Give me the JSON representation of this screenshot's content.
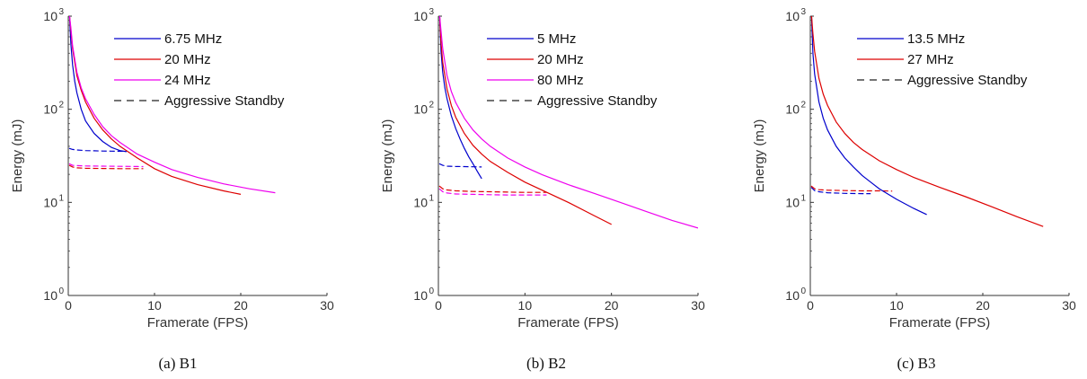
{
  "chart_data": [
    {
      "type": "line",
      "caption": "(a) B1",
      "xlabel": "Framerate (FPS)",
      "ylabel": "Energy (mJ)",
      "xlim": [
        0,
        30
      ],
      "ylim": [
        1,
        1000
      ],
      "yscale": "log",
      "xticks": [
        "0",
        "10",
        "20",
        "30"
      ],
      "yticks": [
        {
          "base": "10",
          "exp": "0"
        },
        {
          "base": "10",
          "exp": "1"
        },
        {
          "base": "10",
          "exp": "2"
        },
        {
          "base": "10",
          "exp": "3"
        }
      ],
      "grid": false,
      "legend_position": "top-right",
      "standby_label": "Aggressive Standby",
      "series": [
        {
          "name": "6.75 MHz",
          "color": "#0000cc",
          "x": [
            0.15,
            0.3,
            0.5,
            0.75,
            1,
            1.5,
            2,
            3,
            4,
            5,
            6,
            6.75
          ],
          "y": [
            1000,
            500,
            300,
            200,
            150,
            100,
            75,
            55,
            45,
            39,
            36,
            35
          ]
        },
        {
          "name": "20 MHz",
          "color": "#dd0000",
          "x": [
            0.15,
            0.3,
            0.5,
            1,
            1.5,
            2,
            3,
            4,
            5,
            6,
            8,
            10,
            12,
            15,
            18,
            20
          ],
          "y": [
            1000,
            700,
            450,
            230,
            160,
            120,
            80,
            60,
            48,
            40,
            30,
            23,
            19,
            15.5,
            13.3,
            12.2
          ]
        },
        {
          "name": "24 MHz",
          "color": "#ee00ee",
          "x": [
            0.15,
            0.3,
            0.5,
            1,
            1.5,
            2,
            3,
            4,
            5,
            6,
            8,
            10,
            12,
            15,
            18,
            21,
            24
          ],
          "y": [
            1000,
            750,
            480,
            250,
            170,
            130,
            88,
            65,
            52,
            44,
            33,
            27,
            22.5,
            18.5,
            15.8,
            14,
            12.7
          ]
        }
      ],
      "standby": [
        {
          "color": "#0000cc",
          "x": [
            0.1,
            0.5,
            1,
            2,
            3,
            4,
            5,
            6.75
          ],
          "y": [
            38,
            37,
            36.5,
            36,
            35.8,
            35.6,
            35.5,
            35.3
          ]
        },
        {
          "color": "#dd0000",
          "x": [
            0.1,
            0.5,
            1,
            2,
            4,
            6,
            8,
            8.7
          ],
          "y": [
            25,
            24,
            23.5,
            23.2,
            23.1,
            23,
            23,
            23
          ]
        },
        {
          "color": "#ee00ee",
          "x": [
            0.1,
            0.5,
            1,
            2,
            4,
            6,
            8,
            8.7
          ],
          "y": [
            26,
            25,
            24.8,
            24.6,
            24.5,
            24.4,
            24.3,
            24.2
          ]
        }
      ]
    },
    {
      "type": "line",
      "caption": "(b) B2",
      "xlabel": "Framerate (FPS)",
      "ylabel": "Energy (mJ)",
      "xlim": [
        0,
        30
      ],
      "ylim": [
        1,
        1000
      ],
      "yscale": "log",
      "xticks": [
        "0",
        "10",
        "20",
        "30"
      ],
      "yticks": [
        {
          "base": "10",
          "exp": "0"
        },
        {
          "base": "10",
          "exp": "1"
        },
        {
          "base": "10",
          "exp": "2"
        },
        {
          "base": "10",
          "exp": "3"
        }
      ],
      "grid": false,
      "legend_position": "top-right",
      "standby_label": "Aggressive Standby",
      "series": [
        {
          "name": "5 MHz",
          "color": "#0000cc",
          "x": [
            0.15,
            0.3,
            0.5,
            0.75,
            1,
            1.5,
            2,
            2.5,
            3,
            3.5,
            4,
            4.5,
            5
          ],
          "y": [
            1000,
            420,
            250,
            170,
            130,
            85,
            62,
            48,
            38,
            31,
            26,
            21.5,
            18
          ]
        },
        {
          "name": "20 MHz",
          "color": "#dd0000",
          "x": [
            0.15,
            0.3,
            0.5,
            1,
            1.5,
            2,
            3,
            4,
            5,
            6,
            8,
            10,
            12,
            15,
            18,
            20
          ],
          "y": [
            1000,
            520,
            320,
            165,
            110,
            82,
            55,
            41,
            33,
            27.5,
            21,
            16.5,
            13.5,
            10,
            7.2,
            5.8
          ]
        },
        {
          "name": "80 MHz",
          "color": "#ee00ee",
          "x": [
            0.15,
            0.3,
            0.5,
            1,
            1.5,
            2,
            3,
            4,
            5,
            6,
            8,
            10,
            12,
            15,
            18,
            21,
            24,
            27,
            30
          ],
          "y": [
            1000,
            700,
            450,
            230,
            155,
            118,
            80,
            60,
            48,
            40,
            30,
            24,
            19.8,
            15.5,
            12.5,
            10,
            8,
            6.4,
            5.3
          ]
        }
      ],
      "standby": [
        {
          "color": "#0000cc",
          "x": [
            0.1,
            0.5,
            1,
            2,
            3,
            4,
            5
          ],
          "y": [
            26,
            25,
            24.5,
            24.3,
            24.2,
            24.1,
            24
          ]
        },
        {
          "color": "#dd0000",
          "x": [
            0.1,
            0.5,
            1,
            2,
            4,
            6,
            8,
            10,
            12.5
          ],
          "y": [
            15,
            14,
            13.6,
            13.3,
            13.1,
            13,
            12.9,
            12.8,
            12.8
          ]
        },
        {
          "color": "#ee00ee",
          "x": [
            0.1,
            0.5,
            1,
            2,
            4,
            6,
            8,
            10,
            12.5
          ],
          "y": [
            14,
            13,
            12.6,
            12.3,
            12.2,
            12.1,
            12,
            12,
            12
          ]
        }
      ]
    },
    {
      "type": "line",
      "caption": "(c) B3",
      "xlabel": "Framerate (FPS)",
      "ylabel": "Energy (mJ)",
      "xlim": [
        0,
        30
      ],
      "ylim": [
        1,
        1000
      ],
      "yscale": "log",
      "xticks": [
        "0",
        "10",
        "20",
        "30"
      ],
      "yticks": [
        {
          "base": "10",
          "exp": "0"
        },
        {
          "base": "10",
          "exp": "1"
        },
        {
          "base": "10",
          "exp": "2"
        },
        {
          "base": "10",
          "exp": "3"
        }
      ],
      "grid": false,
      "legend_position": "top-right",
      "standby_label": "Aggressive Standby",
      "series": [
        {
          "name": "13.5 MHz",
          "color": "#0000cc",
          "x": [
            0.15,
            0.3,
            0.5,
            1,
            1.5,
            2,
            3,
            4,
            5,
            6,
            7,
            8,
            10,
            12,
            13.5
          ],
          "y": [
            1000,
            400,
            240,
            120,
            80,
            60,
            40,
            30,
            24,
            19.5,
            16.5,
            14,
            10.8,
            8.6,
            7.4
          ]
        },
        {
          "name": "27 MHz",
          "color": "#dd0000",
          "x": [
            0.15,
            0.3,
            0.5,
            1,
            1.5,
            2,
            3,
            4,
            5,
            6,
            8,
            10,
            12,
            15,
            18,
            21,
            24,
            27
          ],
          "y": [
            1000,
            650,
            420,
            215,
            145,
            110,
            73,
            55,
            44,
            37,
            28,
            22.5,
            18.5,
            14.5,
            11.5,
            9,
            7,
            5.5
          ]
        }
      ],
      "standby": [
        {
          "color": "#0000cc",
          "x": [
            0.1,
            0.5,
            1,
            2,
            4,
            6,
            7
          ],
          "y": [
            14.5,
            13.4,
            13,
            12.7,
            12.5,
            12.4,
            12.4
          ]
        },
        {
          "color": "#dd0000",
          "x": [
            0.1,
            0.5,
            1,
            2,
            4,
            6,
            8,
            9.5
          ],
          "y": [
            15,
            14,
            13.7,
            13.5,
            13.4,
            13.3,
            13.3,
            13.2
          ]
        }
      ]
    }
  ]
}
